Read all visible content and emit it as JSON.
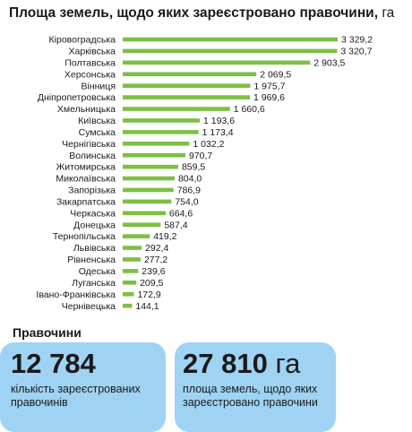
{
  "header": {
    "title": "Площа земель, щодо яких зареєстровано правочини,",
    "unit": "га"
  },
  "chart_data": {
    "type": "bar",
    "orientation": "horizontal",
    "bar_color": "#7bc043",
    "title": "Площа земель, щодо яких зареєстровано правочини, га",
    "categories": [
      "Кіровоградська",
      "Харківська",
      "Полтавська",
      "Херсонська",
      "Вінниця",
      "Дніпропетровська",
      "Хмельницька",
      "Київська",
      "Сумська",
      "Чернігівська",
      "Волинська",
      "Житомирська",
      "Миколаївська",
      "Запорізька",
      "Закарпатська",
      "Черкаська",
      "Донецька",
      "Тернопільська",
      "Львівська",
      "Рівненська",
      "Одеська",
      "Луганська",
      "Івано-Франківська",
      "Чернівецька"
    ],
    "values": [
      3329.2,
      3320.7,
      2903.5,
      2069.5,
      1975.7,
      1969.6,
      1660.6,
      1193.6,
      1173.4,
      1032.2,
      970.7,
      859.5,
      804.0,
      786.9,
      754.0,
      664.6,
      587.4,
      419.2,
      292.4,
      277.2,
      239.6,
      209.5,
      172.9,
      144.1
    ],
    "value_labels": [
      "3 329,2",
      "3 320,7",
      "2 903,5",
      "2 069,5",
      "1 975,7",
      "1 969,6",
      "1 660,6",
      "1 193,6",
      "1 173,4",
      "1 032,2",
      "970,7",
      "859,5",
      "804,0",
      "786,9",
      "754,0",
      "664,6",
      "587,4",
      "419,2",
      "292,4",
      "277,2",
      "239,6",
      "209,5",
      "172,9",
      "144,1"
    ]
  },
  "summary": {
    "section_title": "Правочини",
    "cards": [
      {
        "value": "12 784",
        "unit": "",
        "description": "кількість зареєстрованих правочинів"
      },
      {
        "value": "27 810",
        "unit": "га",
        "description": "площа земель, щодо яких зареєстровано правочини"
      }
    ]
  }
}
